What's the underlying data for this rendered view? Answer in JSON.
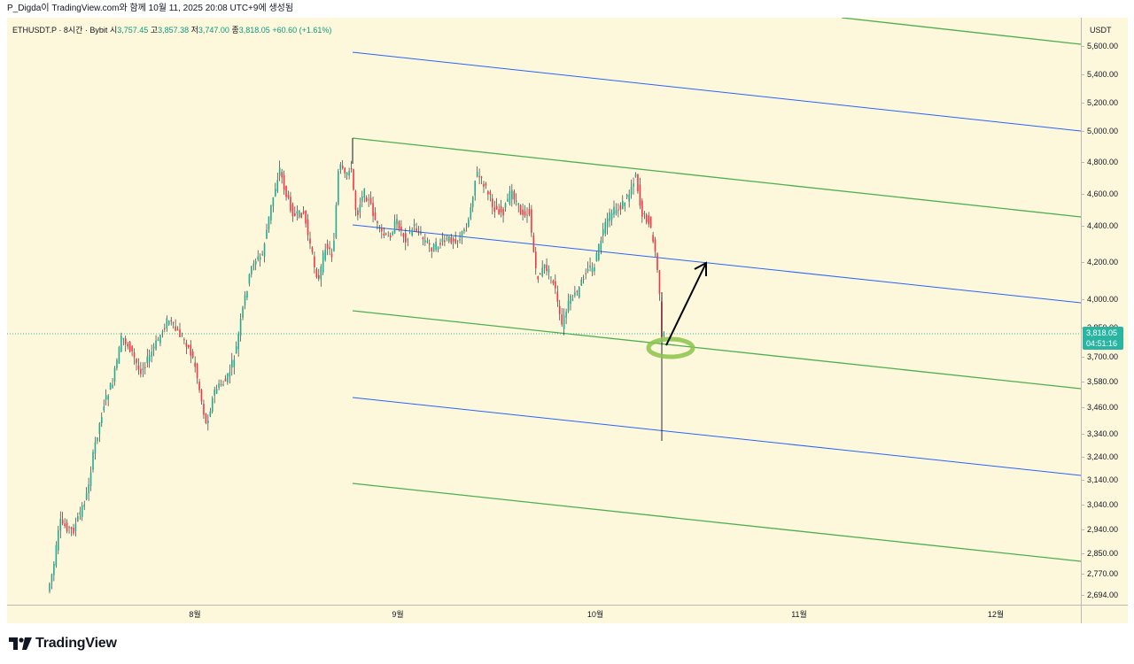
{
  "header": {
    "publish_note": "P_Digda이 TradingView.com와 함께 10월 11, 2025 20:08 UTC+9에 생성됨"
  },
  "legend": {
    "symbol": "ETHUSDT.P · 8시간 · Bybit",
    "open_label": "시",
    "open": "3,757.45",
    "high_label": "고",
    "high": "3,857.38",
    "low_label": "저",
    "low": "3,747.00",
    "close_label": "종",
    "close": "3,818.05",
    "change": "+60.60 (+1.61%)"
  },
  "price_axis": {
    "currency": "USDT",
    "ticks": [
      "5,600.00",
      "5,400.00",
      "5,200.00",
      "5,000.00",
      "4,800.00",
      "4,600.00",
      "4,400.00",
      "4,200.00",
      "4,000.00",
      "3,850.00",
      "3,700.00",
      "3,580.00",
      "3,460.00",
      "3,340.00",
      "3,240.00",
      "3,140.00",
      "3,040.00",
      "2,940.00",
      "2,850.00",
      "2,770.00",
      "2,694.00"
    ],
    "last_price": "3,818.05",
    "countdown": "04:51:16"
  },
  "time_axis": {
    "ticks": [
      "8월",
      "9월",
      "10월",
      "11월",
      "12월"
    ]
  },
  "footer": {
    "brand": "TradingView"
  },
  "colors": {
    "background": "#fdf8dc",
    "up": "#22ab94",
    "down": "#f23645",
    "channel_green": "#4caf50",
    "channel_blue": "#2962ff",
    "arrow": "#000000",
    "highlight": "#8bc34a"
  },
  "chart_data": {
    "type": "candlestick",
    "title": "ETHUSDT.P · 8시간 · Bybit",
    "interval": "8시간",
    "ylim": [
      2694,
      5650
    ],
    "y_scale": "log",
    "x_ticks": [
      "8월",
      "9월",
      "10월",
      "11월",
      "12월"
    ],
    "key_points": [
      {
        "x": "2025-07-20",
        "y": 2694,
        "label": "chart start (low)"
      },
      {
        "x": "2025-08-13",
        "y": 4780,
        "label": "August high"
      },
      {
        "x": "2025-08-24",
        "y": 4950,
        "label": "all-time high (channel anchor)"
      },
      {
        "x": "2025-09-13",
        "y": 4770,
        "label": "September high"
      },
      {
        "x": "2025-09-25",
        "y": 3830,
        "label": "September low"
      },
      {
        "x": "2025-10-07",
        "y": 4750,
        "label": "October high"
      },
      {
        "x": "2025-10-10",
        "y": 3340,
        "label": "flash-crash wick low"
      },
      {
        "x": "2025-10-11",
        "y": 3818.05,
        "label": "last close"
      }
    ],
    "last_candle": {
      "open": 3757.45,
      "high": 3857.38,
      "low": 3747.0,
      "close": 3818.05,
      "change": 60.6,
      "change_pct": 1.61
    },
    "channels": [
      {
        "kind": "parallel channel (green)",
        "lines": 5
      },
      {
        "kind": "parallel channel (blue)",
        "lines": 3
      }
    ],
    "annotations": [
      "upward arrow toward channel midline from October low",
      "green ellipse marking bounce on channel line"
    ]
  }
}
